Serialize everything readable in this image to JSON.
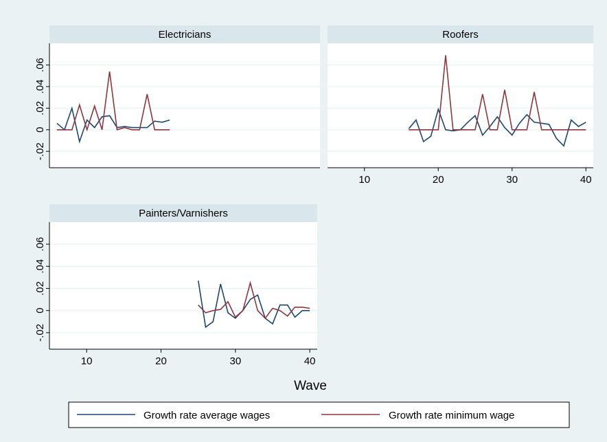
{
  "chart_data": {
    "type": "line",
    "xlabel": "Wave",
    "xlim": [
      5,
      41
    ],
    "ylim": [
      -0.025,
      0.075
    ],
    "x_ticks": [
      10,
      20,
      30,
      40
    ],
    "y_ticks": [
      -0.02,
      0,
      0.02,
      0.04,
      0.06
    ],
    "y_tick_labels": [
      "-.02",
      "0",
      ".02",
      ".04",
      ".06"
    ],
    "grid": true,
    "legend_position": "bottom",
    "series_colors": {
      "avg": "#1a476f",
      "min": "#90353b"
    },
    "legend": {
      "avg_label": "Growth rate average wages",
      "min_label": "Growth rate minimum wage"
    },
    "panels": [
      {
        "title": "Electricians",
        "series": [
          {
            "key": "avg",
            "x": [
              6,
              7,
              8,
              9,
              10,
              11,
              12,
              13,
              14,
              15,
              16,
              17,
              18,
              19,
              20,
              21
            ],
            "y": [
              0.006,
              0,
              0.02,
              -0.011,
              0.009,
              0.002,
              0.012,
              0.013,
              0.002,
              0.003,
              0.002,
              0.002,
              0.002,
              0.008,
              0.007,
              0.009
            ]
          },
          {
            "key": "min",
            "x": [
              6,
              7,
              8,
              9,
              10,
              11,
              12,
              13,
              14,
              15,
              16,
              17,
              18,
              19,
              20,
              21
            ],
            "y": [
              0,
              0,
              0,
              0.023,
              0,
              0.022,
              0,
              0.054,
              0,
              0.002,
              0,
              0,
              0.033,
              0,
              0,
              0
            ]
          }
        ]
      },
      {
        "title": "Roofers",
        "series": [
          {
            "key": "avg",
            "x": [
              16,
              17,
              18,
              19,
              20,
              21,
              22,
              23,
              24,
              25,
              26,
              27,
              28,
              29,
              30,
              31,
              32,
              33,
              34,
              35,
              36,
              37,
              38,
              39,
              40
            ],
            "y": [
              0.001,
              0.009,
              -0.011,
              -0.006,
              0.019,
              0,
              -0.001,
              0,
              0.007,
              0.013,
              -0.005,
              0.003,
              0.012,
              0.002,
              -0.005,
              0.006,
              0.014,
              0.007,
              0.006,
              0.005,
              -0.008,
              -0.015,
              0.009,
              0.003,
              0.007
            ]
          },
          {
            "key": "min",
            "x": [
              16,
              17,
              18,
              19,
              20,
              21,
              22,
              23,
              24,
              25,
              26,
              27,
              28,
              29,
              30,
              31,
              32,
              33,
              34,
              35,
              36,
              37,
              38,
              39,
              40
            ],
            "y": [
              0,
              0,
              0,
              0,
              0,
              0.069,
              0,
              0,
              0,
              0,
              0.033,
              0,
              0,
              0.037,
              0,
              0,
              0,
              0.035,
              0,
              0,
              0,
              0,
              0,
              0,
              0
            ]
          }
        ]
      },
      {
        "title": "Painters/Varnishers",
        "series": [
          {
            "key": "avg",
            "x": [
              25,
              26,
              27,
              28,
              29,
              30,
              31,
              32,
              33,
              34,
              35,
              36,
              37,
              38,
              39,
              40
            ],
            "y": [
              0.027,
              -0.015,
              -0.01,
              0.024,
              -0.002,
              -0.007,
              0,
              0.01,
              0.014,
              -0.007,
              -0.012,
              0.005,
              0.005,
              -0.006,
              0,
              0
            ]
          },
          {
            "key": "min",
            "x": [
              25,
              26,
              27,
              28,
              29,
              30,
              31,
              32,
              33,
              34,
              35,
              36,
              37,
              38,
              39,
              40
            ],
            "y": [
              0.005,
              -0.002,
              0,
              0.001,
              0.008,
              -0.006,
              0,
              0.025,
              0,
              -0.007,
              0.002,
              0,
              -0.005,
              0.003,
              0.003,
              0.002
            ]
          }
        ]
      }
    ]
  }
}
